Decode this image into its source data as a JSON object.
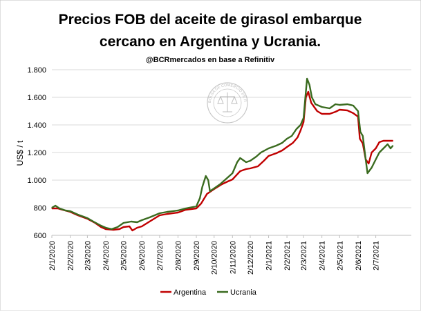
{
  "chart_data": {
    "type": "line",
    "title": "Precios FOB del aceite de girasol embarque cercano en Argentina y Ucrania.",
    "title_line1": "Precios FOB del aceite de girasol embarque",
    "title_line2": "cercano en Argentina y Ucrania.",
    "subtitle": "@BCRmercados en base a Refinitiv",
    "xlabel": "",
    "ylabel": "US$ / t",
    "ylim": [
      600,
      1800
    ],
    "yticks": [
      600,
      800,
      1000,
      1200,
      1400,
      1600,
      1800
    ],
    "ytick_labels": [
      "600",
      "800",
      "1.000",
      "1.200",
      "1.400",
      "1.600",
      "1.800"
    ],
    "xlim": [
      "2020-01-02",
      "2021-08-31"
    ],
    "xticks": [
      "2020-01-02",
      "2020-02-02",
      "2020-03-02",
      "2020-04-02",
      "2020-05-02",
      "2020-06-02",
      "2020-07-02",
      "2020-08-02",
      "2020-09-02",
      "2020-10-02",
      "2020-11-02",
      "2020-12-02",
      "2021-01-02",
      "2021-02-02",
      "2021-03-02",
      "2021-04-02",
      "2021-05-02",
      "2021-06-02",
      "2021-07-02"
    ],
    "xtick_labels": [
      "2/1/2020",
      "2/2/2020",
      "2/3/2020",
      "2/4/2020",
      "2/5/2020",
      "2/6/2020",
      "2/7/2020",
      "2/8/2020",
      "2/9/2020",
      "2/10/2020",
      "2/11/2020",
      "2/12/2020",
      "2/1/2021",
      "2/2/2021",
      "2/3/2021",
      "2/4/2021",
      "2/5/2021",
      "2/6/2021",
      "2/7/2021"
    ],
    "grid": "horizontal",
    "legend_position": "bottom",
    "watermark_text": "BOLSA DE COMERCIO DE ROSARIO",
    "series": [
      {
        "name": "Argentina",
        "color": "#c00000",
        "points": [
          [
            "2020-01-02",
            795
          ],
          [
            "2020-01-12",
            795
          ],
          [
            "2020-01-20",
            785
          ],
          [
            "2020-02-02",
            770
          ],
          [
            "2020-02-15",
            745
          ],
          [
            "2020-03-02",
            720
          ],
          [
            "2020-03-15",
            690
          ],
          [
            "2020-03-25",
            660
          ],
          [
            "2020-04-02",
            645
          ],
          [
            "2020-04-15",
            640
          ],
          [
            "2020-04-25",
            645
          ],
          [
            "2020-05-02",
            660
          ],
          [
            "2020-05-12",
            665
          ],
          [
            "2020-05-17",
            635
          ],
          [
            "2020-05-25",
            655
          ],
          [
            "2020-06-02",
            665
          ],
          [
            "2020-06-15",
            700
          ],
          [
            "2020-07-02",
            745
          ],
          [
            "2020-07-15",
            755
          ],
          [
            "2020-08-02",
            765
          ],
          [
            "2020-08-15",
            785
          ],
          [
            "2020-09-02",
            795
          ],
          [
            "2020-09-10",
            830
          ],
          [
            "2020-09-20",
            900
          ],
          [
            "2020-10-02",
            935
          ],
          [
            "2020-10-15",
            970
          ],
          [
            "2020-10-25",
            990
          ],
          [
            "2020-11-02",
            1005
          ],
          [
            "2020-11-15",
            1065
          ],
          [
            "2020-11-25",
            1080
          ],
          [
            "2020-12-02",
            1085
          ],
          [
            "2020-12-15",
            1100
          ],
          [
            "2020-12-25",
            1140
          ],
          [
            "2021-01-02",
            1175
          ],
          [
            "2021-01-15",
            1195
          ],
          [
            "2021-01-25",
            1215
          ],
          [
            "2021-02-02",
            1240
          ],
          [
            "2021-02-12",
            1270
          ],
          [
            "2021-02-20",
            1310
          ],
          [
            "2021-02-25",
            1360
          ],
          [
            "2021-03-02",
            1420
          ],
          [
            "2021-03-06",
            1600
          ],
          [
            "2021-03-10",
            1640
          ],
          [
            "2021-03-15",
            1560
          ],
          [
            "2021-03-25",
            1500
          ],
          [
            "2021-04-02",
            1480
          ],
          [
            "2021-04-15",
            1480
          ],
          [
            "2021-04-25",
            1495
          ],
          [
            "2021-05-02",
            1510
          ],
          [
            "2021-05-15",
            1505
          ],
          [
            "2021-05-25",
            1485
          ],
          [
            "2021-06-02",
            1460
          ],
          [
            "2021-06-05",
            1300
          ],
          [
            "2021-06-10",
            1265
          ],
          [
            "2021-06-15",
            1150
          ],
          [
            "2021-06-20",
            1120
          ],
          [
            "2021-06-25",
            1200
          ],
          [
            "2021-07-02",
            1230
          ],
          [
            "2021-07-08",
            1275
          ],
          [
            "2021-07-15",
            1285
          ],
          [
            "2021-07-31",
            1285
          ]
        ]
      },
      {
        "name": "Ucrania",
        "color": "#3a6b1f",
        "points": [
          [
            "2020-01-02",
            800
          ],
          [
            "2020-01-08",
            815
          ],
          [
            "2020-01-15",
            795
          ],
          [
            "2020-01-25",
            780
          ],
          [
            "2020-02-02",
            775
          ],
          [
            "2020-02-15",
            750
          ],
          [
            "2020-03-02",
            725
          ],
          [
            "2020-03-12",
            700
          ],
          [
            "2020-03-25",
            670
          ],
          [
            "2020-04-02",
            655
          ],
          [
            "2020-04-12",
            645
          ],
          [
            "2020-04-22",
            660
          ],
          [
            "2020-05-02",
            690
          ],
          [
            "2020-05-15",
            700
          ],
          [
            "2020-05-25",
            695
          ],
          [
            "2020-06-02",
            710
          ],
          [
            "2020-06-15",
            730
          ],
          [
            "2020-07-02",
            760
          ],
          [
            "2020-07-15",
            770
          ],
          [
            "2020-08-02",
            780
          ],
          [
            "2020-08-15",
            795
          ],
          [
            "2020-09-02",
            810
          ],
          [
            "2020-09-08",
            870
          ],
          [
            "2020-09-12",
            950
          ],
          [
            "2020-09-18",
            1030
          ],
          [
            "2020-09-22",
            1000
          ],
          [
            "2020-09-25",
            920
          ],
          [
            "2020-10-02",
            940
          ],
          [
            "2020-10-12",
            970
          ],
          [
            "2020-10-20",
            1000
          ],
          [
            "2020-11-02",
            1050
          ],
          [
            "2020-11-10",
            1130
          ],
          [
            "2020-11-15",
            1160
          ],
          [
            "2020-11-25",
            1130
          ],
          [
            "2020-12-02",
            1140
          ],
          [
            "2020-12-12",
            1170
          ],
          [
            "2020-12-20",
            1200
          ],
          [
            "2021-01-02",
            1230
          ],
          [
            "2021-01-15",
            1250
          ],
          [
            "2021-01-25",
            1270
          ],
          [
            "2021-02-02",
            1300
          ],
          [
            "2021-02-10",
            1320
          ],
          [
            "2021-02-18",
            1370
          ],
          [
            "2021-02-25",
            1400
          ],
          [
            "2021-03-02",
            1450
          ],
          [
            "2021-03-05",
            1600
          ],
          [
            "2021-03-08",
            1735
          ],
          [
            "2021-03-12",
            1690
          ],
          [
            "2021-03-16",
            1600
          ],
          [
            "2021-03-22",
            1550
          ],
          [
            "2021-04-02",
            1530
          ],
          [
            "2021-04-15",
            1520
          ],
          [
            "2021-04-25",
            1550
          ],
          [
            "2021-05-02",
            1545
          ],
          [
            "2021-05-15",
            1550
          ],
          [
            "2021-05-25",
            1540
          ],
          [
            "2021-06-02",
            1500
          ],
          [
            "2021-06-06",
            1350
          ],
          [
            "2021-06-10",
            1320
          ],
          [
            "2021-06-15",
            1150
          ],
          [
            "2021-06-18",
            1050
          ],
          [
            "2021-06-25",
            1090
          ],
          [
            "2021-07-02",
            1150
          ],
          [
            "2021-07-08",
            1200
          ],
          [
            "2021-07-15",
            1230
          ],
          [
            "2021-07-22",
            1260
          ],
          [
            "2021-07-27",
            1230
          ],
          [
            "2021-07-31",
            1250
          ]
        ]
      }
    ]
  }
}
